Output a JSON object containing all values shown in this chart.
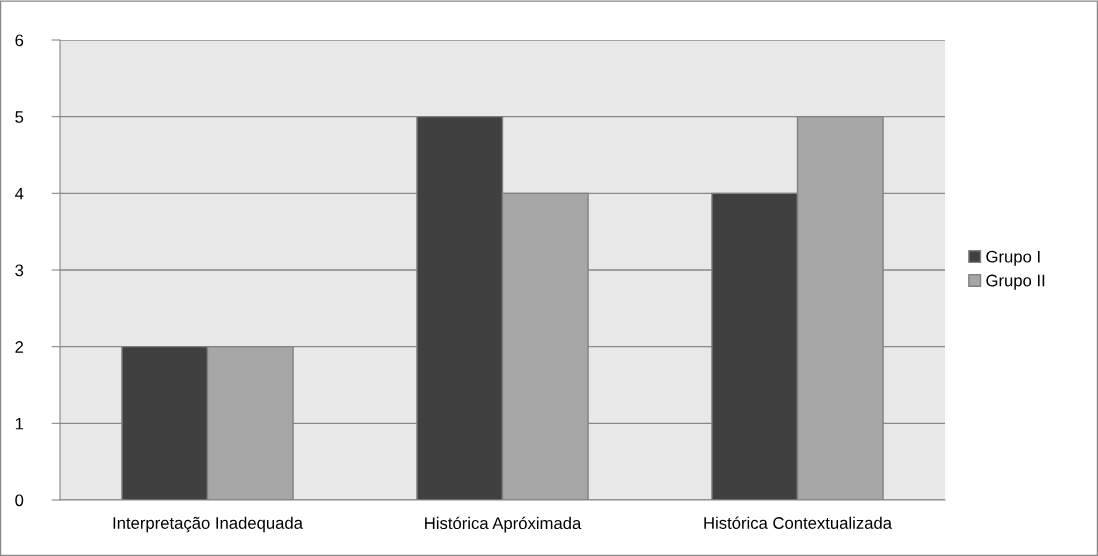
{
  "chart_data": {
    "type": "bar",
    "categories": [
      "Interpretação Inadequada",
      "Histórica Apróximada",
      "Histórica Contextualizada"
    ],
    "series": [
      {
        "name": "Grupo I",
        "color": "#404040",
        "values": [
          2,
          5,
          4
        ]
      },
      {
        "name": "Grupo II",
        "color": "#a6a6a6",
        "values": [
          2,
          4,
          5
        ]
      }
    ],
    "ylim": [
      0,
      6
    ],
    "yticks": [
      0,
      1,
      2,
      3,
      4,
      5,
      6
    ],
    "grid": "y",
    "legend": "right"
  }
}
